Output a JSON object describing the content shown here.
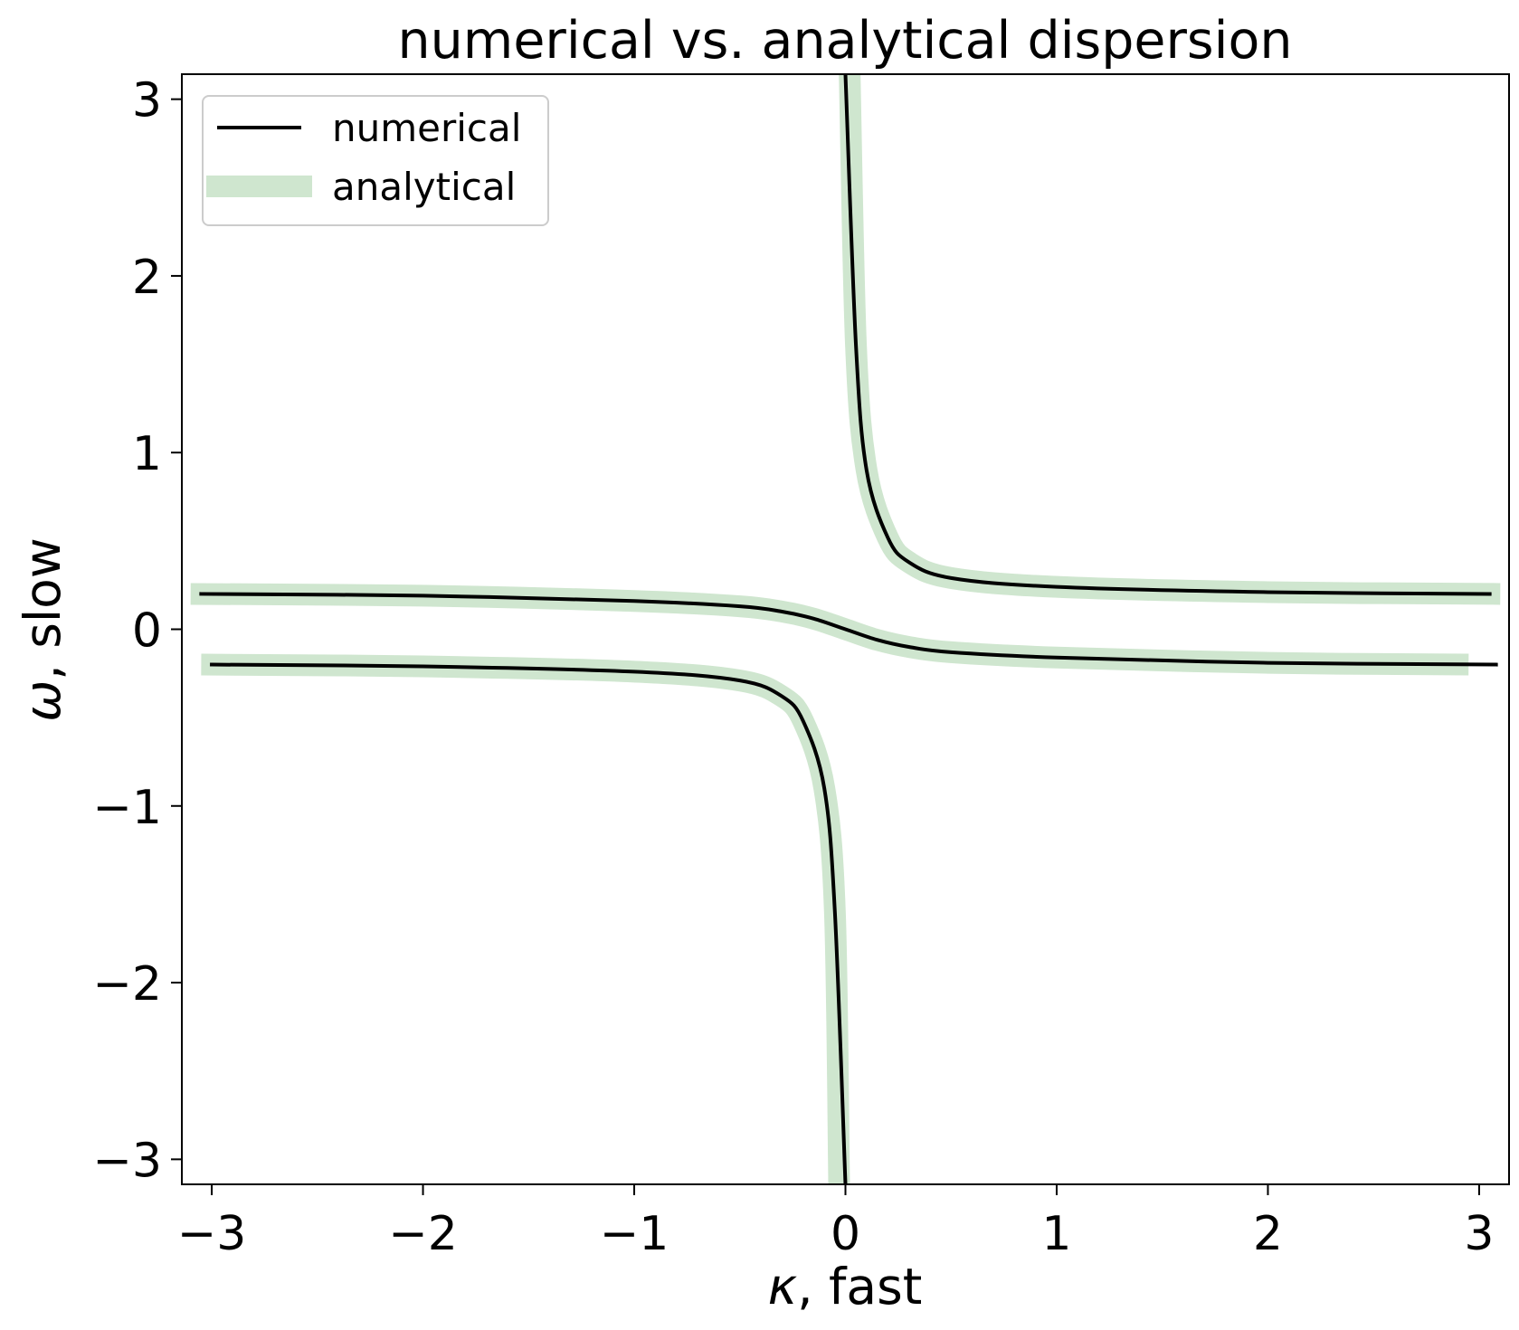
{
  "chart_data": {
    "type": "line",
    "title": "numerical vs. analytical dispersion",
    "xlabel_symbol": "κ",
    "xlabel_rest": ", fast",
    "ylabel_symbol": "ω",
    "ylabel_rest": ", slow",
    "xlim": [
      -3.14159,
      3.14159
    ],
    "ylim": [
      -3.14159,
      3.14159
    ],
    "xticks": [
      -3,
      -2,
      -1,
      0,
      1,
      2,
      3
    ],
    "yticks": [
      -3,
      -2,
      -1,
      0,
      1,
      2,
      3
    ],
    "xtick_labels": [
      "−3",
      "−2",
      "−1",
      "0",
      "1",
      "2",
      "3"
    ],
    "ytick_labels": [
      "−3",
      "−2",
      "−1",
      "0",
      "1",
      "2",
      "3"
    ],
    "grid": false,
    "legend_position": "top-left",
    "series": [
      {
        "name": "numerical",
        "color": "#000000",
        "style": "thin-solid",
        "branches": [
          {
            "x": [
              -3.0,
              -2.0,
              -1.0,
              -0.5,
              -0.3,
              -0.2,
              -0.1,
              -0.05,
              0.0
            ],
            "y": [
              -0.2,
              -0.21,
              -0.24,
              -0.29,
              -0.38,
              -0.52,
              -0.9,
              -1.6,
              -3.14
            ]
          },
          {
            "x": [
              0.0,
              0.05,
              0.1,
              0.2,
              0.3,
              0.5,
              1.0,
              2.0,
              3.05
            ],
            "y": [
              3.14,
              1.6,
              0.9,
              0.52,
              0.38,
              0.29,
              0.24,
              0.21,
              0.2
            ]
          },
          {
            "x": [
              -3.05,
              -2.0,
              -1.0,
              -0.5,
              -0.3,
              -0.15,
              0.0,
              0.15,
              0.3,
              0.5,
              1.0,
              2.0,
              3.08
            ],
            "y": [
              0.2,
              0.19,
              0.16,
              0.13,
              0.1,
              0.06,
              0.0,
              -0.06,
              -0.1,
              -0.13,
              -0.16,
              -0.19,
              -0.2
            ]
          }
        ]
      },
      {
        "name": "analytical",
        "color": "#cfe6cf",
        "style": "thick-solid",
        "branches": [
          {
            "x": [
              -3.05,
              -2.0,
              -1.0,
              -0.5,
              -0.3,
              -0.2,
              -0.1,
              -0.05,
              -0.03
            ],
            "y": [
              -0.2,
              -0.21,
              -0.24,
              -0.29,
              -0.38,
              -0.52,
              -0.9,
              -1.6,
              -3.14
            ]
          },
          {
            "x": [
              0.02,
              0.05,
              0.1,
              0.2,
              0.3,
              0.5,
              1.0,
              2.0,
              3.1
            ],
            "y": [
              3.14,
              1.6,
              0.9,
              0.52,
              0.38,
              0.29,
              0.24,
              0.21,
              0.2
            ]
          },
          {
            "x": [
              -3.1,
              -2.0,
              -1.0,
              -0.5,
              -0.3,
              -0.15,
              0.0,
              0.15,
              0.3,
              0.5,
              1.0,
              2.0,
              2.95
            ],
            "y": [
              0.2,
              0.19,
              0.16,
              0.13,
              0.1,
              0.06,
              0.0,
              -0.06,
              -0.1,
              -0.13,
              -0.16,
              -0.19,
              -0.2
            ]
          }
        ]
      }
    ]
  }
}
